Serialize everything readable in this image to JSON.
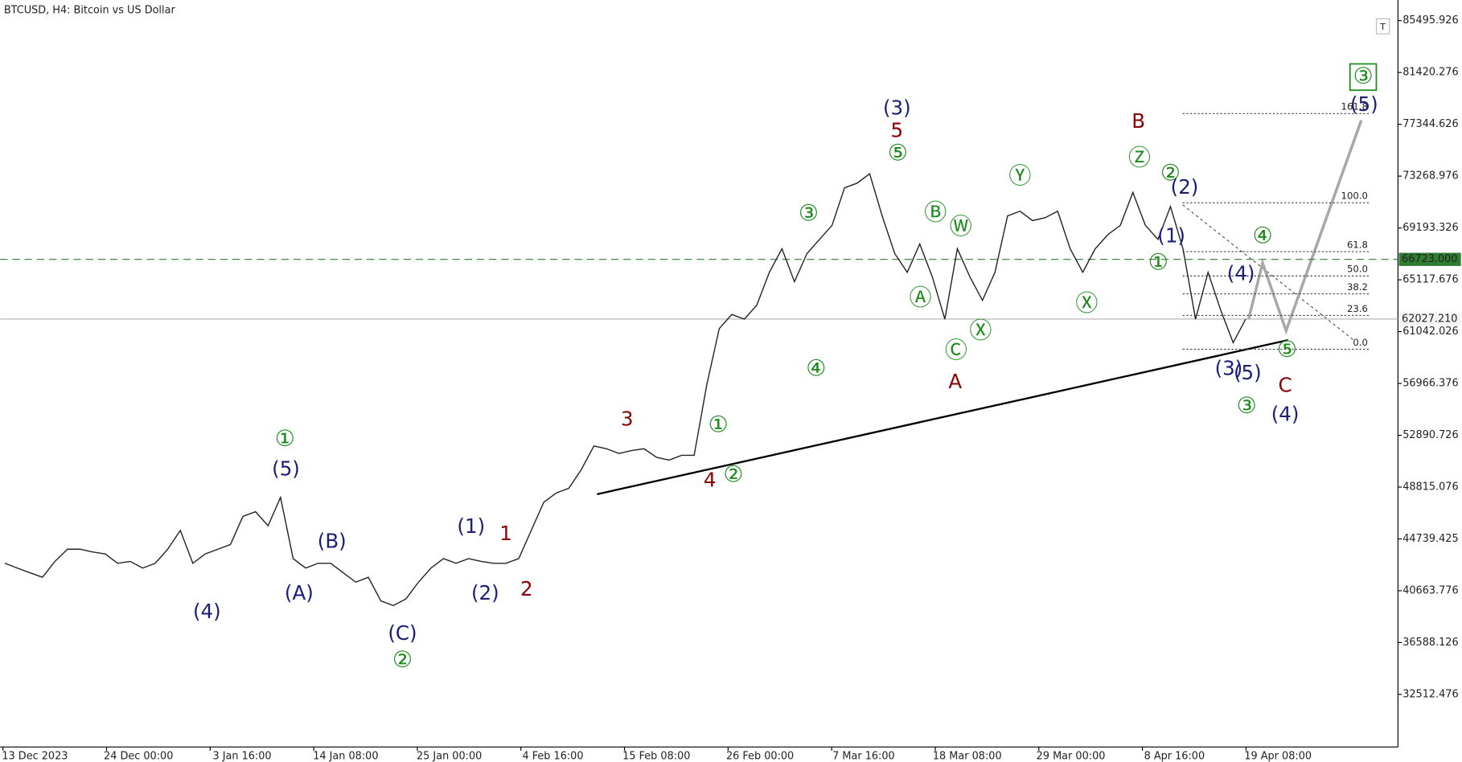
{
  "chart_data": {
    "type": "line",
    "title": "BTCUSD, H4:  Bitcoin vs US Dollar",
    "toolbar_icon": "T",
    "ylim": [
      28378,
      87120
    ],
    "yticks": [
      85495.926,
      81420.276,
      77344.626,
      73268.976,
      69193.326,
      65117.676,
      61042.026,
      56966.376,
      52890.726,
      48815.076,
      44739.425,
      40663.776,
      36588.126,
      32512.476
    ],
    "x_axis_labels": [
      "13 Dec 2023",
      "24 Dec 00:00",
      "3 Jan 16:00",
      "14 Jan 08:00",
      "25 Jan 00:00",
      "4 Feb 16:00",
      "15 Feb 08:00",
      "26 Feb 00:00",
      "7 Mar 16:00",
      "18 Mar 08:00",
      "29 Mar 00:00",
      "8 Apr 16:00",
      "19 Apr 08:00"
    ],
    "series": [
      {
        "name": "BTCUSD",
        "color": "#222222",
        "values": [
          42820,
          42450,
          42080,
          41720,
          42970,
          43930,
          43930,
          43710,
          43560,
          42820,
          42970,
          42450,
          42820,
          43930,
          45410,
          42820,
          43560,
          43930,
          44300,
          46510,
          46880,
          45770,
          48000,
          43190,
          42450,
          42820,
          42820,
          42080,
          41340,
          41720,
          39870,
          39500,
          40020,
          41340,
          42450,
          43190,
          42820,
          43190,
          42970,
          42820,
          42820,
          43190,
          45410,
          47620,
          48360,
          48730,
          50200,
          52050,
          51830,
          51460,
          51680,
          51830,
          51160,
          50940,
          51310,
          51310,
          56850,
          61280,
          62390,
          62020,
          63130,
          65710,
          67560,
          64970,
          67180,
          68290,
          69400,
          72350,
          72720,
          73460,
          70140,
          67180,
          65710,
          67930,
          65340,
          62020,
          67560,
          65340,
          63500,
          65710,
          70140,
          70510,
          69770,
          70000,
          70510,
          67560,
          65710,
          67560,
          68660,
          69400,
          71990,
          69400,
          68290,
          70880,
          67560,
          62020,
          65710,
          62760,
          60170,
          62020
        ]
      }
    ],
    "price_lines": [
      {
        "value": 66723,
        "label": "66723.000",
        "color": "#2e7d32",
        "dashed": true
      },
      {
        "value": 62027.21,
        "label": "62027.210",
        "color": "#b0b0b0",
        "dashed": false
      }
    ],
    "fib_levels": [
      {
        "label": "161.8",
        "price": 78187
      },
      {
        "label": "100.0",
        "price": 71173
      },
      {
        "label": "61.8",
        "price": 67330
      },
      {
        "label": "50.0",
        "price": 65415
      },
      {
        "label": "38.2",
        "price": 64012
      },
      {
        "label": "23.6",
        "price": 62313
      },
      {
        "label": "0.0",
        "price": 59655
      }
    ],
    "annotations": [
      {
        "text": "(4)",
        "color": "#1c1c7a"
      },
      {
        "text": "①",
        "color": "#1b8a1b"
      },
      {
        "text": "(5)",
        "color": "#1c1c7a"
      },
      {
        "text": "(B)",
        "color": "#1c1c7a"
      },
      {
        "text": "(A)",
        "color": "#1c1c7a"
      },
      {
        "text": "(C)",
        "color": "#1c1c7a"
      },
      {
        "text": "②",
        "color": "#1b8a1b"
      },
      {
        "text": "(1)",
        "color": "#1c1c7a"
      },
      {
        "text": "1",
        "color": "#8b0000"
      },
      {
        "text": "(2)",
        "color": "#1c1c7a"
      },
      {
        "text": "2",
        "color": "#8b0000"
      },
      {
        "text": "3",
        "color": "#8b0000"
      },
      {
        "text": "4",
        "color": "#8b0000"
      },
      {
        "text": "②",
        "color": "#1b8a1b"
      },
      {
        "text": "①",
        "color": "#1b8a1b"
      },
      {
        "text": "③",
        "color": "#1b8a1b"
      },
      {
        "text": "④",
        "color": "#1b8a1b"
      },
      {
        "text": "(3)",
        "color": "#1c1c7a"
      },
      {
        "text": "5",
        "color": "#8b0000"
      },
      {
        "text": "⑤",
        "color": "#1b8a1b"
      },
      {
        "text": "Ⓑ",
        "color": "#1b8a1b"
      },
      {
        "text": "Ⓦ",
        "color": "#1b8a1b"
      },
      {
        "text": "Ⓐ",
        "color": "#1b8a1b"
      },
      {
        "text": "Ⓒ",
        "color": "#1b8a1b"
      },
      {
        "text": "Ⓧ",
        "color": "#1b8a1b"
      },
      {
        "text": "A",
        "color": "#8b0000"
      },
      {
        "text": "Ⓨ",
        "color": "#1b8a1b"
      },
      {
        "text": "Ⓧ",
        "color": "#1b8a1b"
      },
      {
        "text": "B",
        "color": "#8b0000"
      },
      {
        "text": "Ⓩ",
        "color": "#1b8a1b"
      },
      {
        "text": "②",
        "color": "#1b8a1b"
      },
      {
        "text": "(2)",
        "color": "#1c1c7a"
      },
      {
        "text": "(1)",
        "color": "#1c1c7a"
      },
      {
        "text": "①",
        "color": "#1b8a1b"
      },
      {
        "text": "(4)",
        "color": "#1c1c7a"
      },
      {
        "text": "④",
        "color": "#1b8a1b"
      },
      {
        "text": "(3)",
        "color": "#1c1c7a"
      },
      {
        "text": "(5)",
        "color": "#1c1c7a"
      },
      {
        "text": "③",
        "color": "#1b8a1b"
      },
      {
        "text": "⑤",
        "color": "#1b8a1b"
      },
      {
        "text": "C",
        "color": "#8b0000"
      },
      {
        "text": "(4)",
        "color": "#1c1c7a"
      },
      {
        "text": "③",
        "color": "#1b8a1b",
        "boxed": true
      },
      {
        "text": "(5)",
        "color": "#1c1c7a"
      }
    ]
  }
}
